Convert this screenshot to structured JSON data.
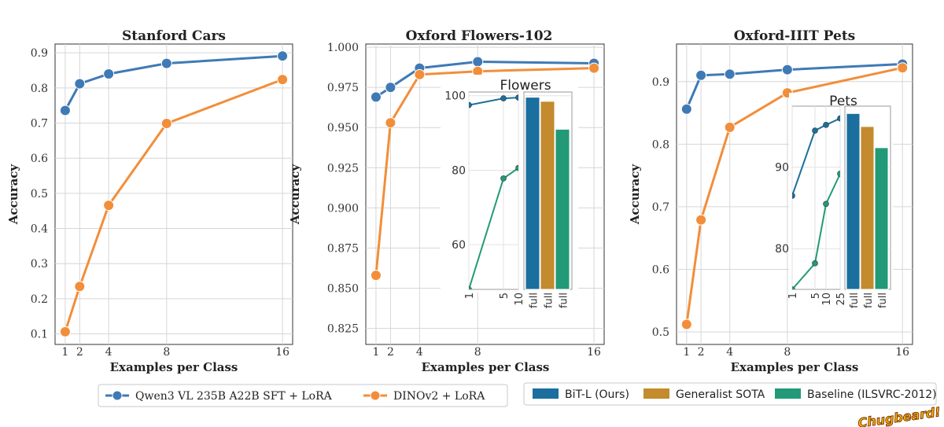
{
  "chart_data": [
    {
      "id": "cars",
      "type": "line",
      "title": "Stanford Cars",
      "xlabel": "Examples per Class",
      "ylabel": "Accuracy",
      "x": [
        1,
        2,
        4,
        8,
        16
      ],
      "xticks": [
        "1",
        "2",
        "4",
        "8",
        "16"
      ],
      "xlim": [
        0.3,
        16.7
      ],
      "ylim": [
        0.07,
        0.925
      ],
      "yticks": [
        "0.1",
        "0.2",
        "0.3",
        "0.4",
        "0.5",
        "0.6",
        "0.7",
        "0.8",
        "0.9"
      ],
      "grid": true,
      "series": [
        {
          "name": "Qwen3 VL 235B A22B SFT + LoRA",
          "color": "#3f7ab5",
          "values": [
            0.736,
            0.812,
            0.84,
            0.87,
            0.891
          ]
        },
        {
          "name": "DINOv2 + LoRA",
          "color": "#f28e3a",
          "values": [
            0.106,
            0.235,
            0.466,
            0.699,
            0.824
          ]
        }
      ]
    },
    {
      "id": "flowers",
      "type": "line",
      "title": "Oxford Flowers-102",
      "xlabel": "Examples per Class",
      "ylabel": "Accuracy",
      "x": [
        1,
        2,
        4,
        8,
        16
      ],
      "xticks": [
        "1",
        "2",
        "4",
        "8",
        "16"
      ],
      "xlim": [
        0.3,
        16.7
      ],
      "ylim": [
        0.815,
        1.002
      ],
      "yticks": [
        "0.825",
        "0.850",
        "0.875",
        "0.900",
        "0.925",
        "0.950",
        "0.975",
        "1.000"
      ],
      "grid": true,
      "series": [
        {
          "name": "Qwen3 VL 235B A22B SFT + LoRA",
          "color": "#3f7ab5",
          "values": [
            0.969,
            0.975,
            0.987,
            0.991,
            0.99
          ]
        },
        {
          "name": "DINOv2 + LoRA",
          "color": "#f28e3a",
          "values": [
            0.858,
            0.953,
            0.983,
            0.985,
            0.987
          ]
        }
      ],
      "inset": {
        "title": "Flowers",
        "line": {
          "x": [
            1,
            5,
            10
          ],
          "xticks": [
            "1",
            "5",
            "10"
          ],
          "yticks": [
            "60",
            "80",
            "100"
          ],
          "ylim": [
            48,
            101
          ],
          "series": [
            {
              "name": "BiT-L (Ours)",
              "color": "#1b6f9e",
              "values": [
                97.5,
                99.3,
                99.5
              ]
            },
            {
              "name": "Baseline (ILSVRC-2012)",
              "color": "#229a78",
              "values": [
                48,
                77.8,
                80.6
              ]
            }
          ]
        },
        "bars": {
          "categories": [
            "full",
            "full",
            "full"
          ],
          "values": [
            99.6,
            98.5,
            91.0
          ],
          "colors": [
            "#1b6f9e",
            "#c38a2e",
            "#229a78"
          ]
        }
      }
    },
    {
      "id": "pets",
      "type": "line",
      "title": "Oxford-IIIT Pets",
      "xlabel": "Examples per Class",
      "ylabel": "Accuracy",
      "x": [
        1,
        2,
        4,
        8,
        16
      ],
      "xticks": [
        "1",
        "2",
        "4",
        "8",
        "16"
      ],
      "xlim": [
        0.3,
        16.7
      ],
      "ylim": [
        0.48,
        0.96
      ],
      "yticks": [
        "0.5",
        "0.6",
        "0.7",
        "0.8",
        "0.9"
      ],
      "grid": true,
      "series": [
        {
          "name": "Qwen3 VL 235B A22B SFT + LoRA",
          "color": "#3f7ab5",
          "values": [
            0.856,
            0.91,
            0.912,
            0.919,
            0.928
          ]
        },
        {
          "name": "DINOv2 + LoRA",
          "color": "#f28e3a",
          "values": [
            0.512,
            0.679,
            0.827,
            0.882,
            0.922
          ]
        }
      ],
      "inset": {
        "title": "Pets",
        "line": {
          "x": [
            1,
            5,
            10,
            25
          ],
          "xticks": [
            "1",
            "5",
            "10",
            "25"
          ],
          "yticks": [
            "80",
            "90"
          ],
          "ylim": [
            75,
            97.5
          ],
          "series": [
            {
              "name": "BiT-L (Ours)",
              "color": "#1b6f9e",
              "values": [
                86.5,
                94.5,
                95.2,
                96.0
              ]
            },
            {
              "name": "Baseline (ILSVRC-2012)",
              "color": "#229a78",
              "values": [
                75,
                78.2,
                85.5,
                89.2
              ]
            }
          ]
        },
        "bars": {
          "categories": [
            "full",
            "full",
            "full"
          ],
          "values": [
            96.6,
            95.0,
            92.4
          ],
          "colors": [
            "#1b6f9e",
            "#c38a2e",
            "#229a78"
          ]
        }
      }
    }
  ],
  "legend_main": [
    {
      "label": "Qwen3 VL 235B A22B SFT + LoRA",
      "color": "#3f7ab5"
    },
    {
      "label": "DINOv2 + LoRA",
      "color": "#f28e3a"
    }
  ],
  "legend_inset": [
    {
      "label": "BiT-L (Ours)",
      "color": "#1b6f9e"
    },
    {
      "label": "Generalist SOTA",
      "color": "#c38a2e"
    },
    {
      "label": "Baseline (ILSVRC-2012)",
      "color": "#229a78"
    }
  ],
  "watermark": "Chugbeard!"
}
